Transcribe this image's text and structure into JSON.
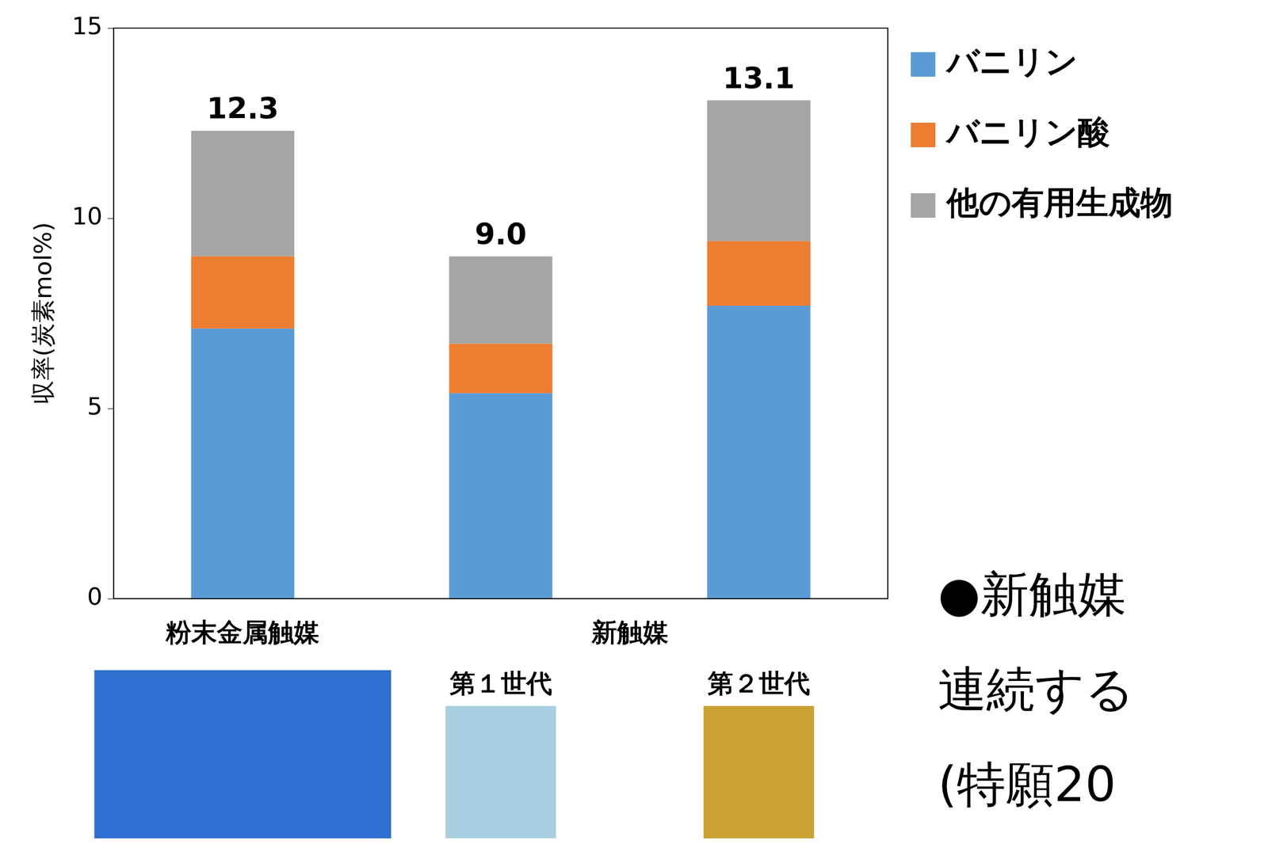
{
  "chart_data": {
    "type": "bar",
    "stacked": true,
    "categories": [
      "粉末金属触媒",
      "第１世代",
      "第２世代"
    ],
    "category_groups": [
      {
        "label": "新触媒",
        "members": [
          "第１世代",
          "第２世代"
        ]
      }
    ],
    "y_label": "収率(炭素mol%)",
    "ylim": [
      0,
      15
    ],
    "yticks": [
      0,
      5,
      10,
      15
    ],
    "grid": false,
    "legend": "right",
    "series": [
      {
        "name": "バニリン",
        "color": "#5b9bd5",
        "values": [
          7.1,
          5.4,
          7.7
        ]
      },
      {
        "name": "バニリン酸",
        "color": "#ed7d31",
        "values": [
          1.9,
          1.3,
          1.7
        ]
      },
      {
        "name": "他の有用生成物",
        "color": "#a5a5a5",
        "values": [
          3.3,
          2.3,
          3.7
        ]
      }
    ],
    "totals": [
      12.3,
      9.0,
      13.1
    ],
    "total_labels": [
      "12.3",
      "9.0",
      "13.1"
    ],
    "annotations": [
      "●新触媒",
      "連続する",
      "(特願20"
    ]
  }
}
